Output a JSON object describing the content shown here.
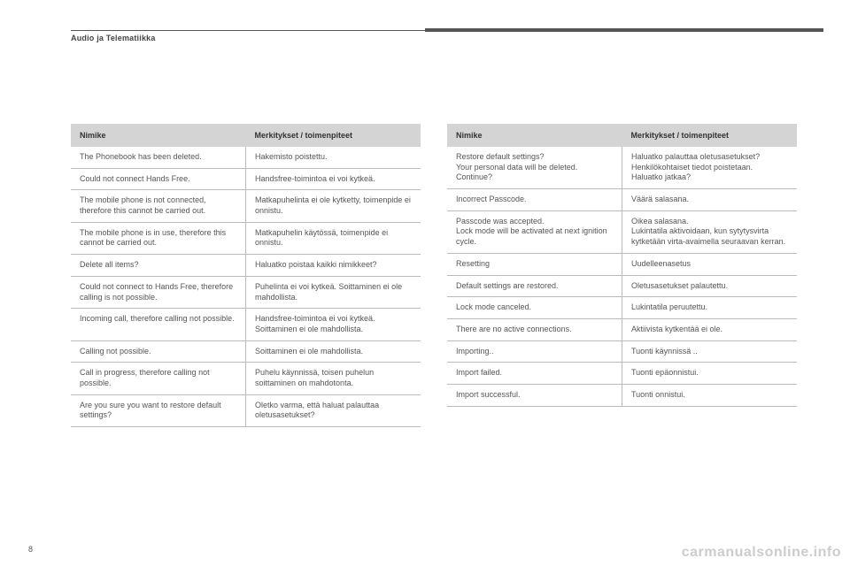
{
  "header": {
    "section_title": "Audio ja Telematiikka",
    "page_number": "8"
  },
  "watermark": "carmanualsonline.info",
  "tables": {
    "columns": [
      "Nimike",
      "Merkitykset / toimenpiteet"
    ],
    "left_rows": [
      [
        "The Phonebook has been deleted.",
        "Hakemisto poistettu."
      ],
      [
        "Could not connect Hands Free.",
        "Handsfree-toimintoa ei voi kytkeä."
      ],
      [
        "The mobile phone is not connected, therefore this cannot be carried out.",
        "Matkapuhelinta ei ole kytketty, toimenpide ei onnistu."
      ],
      [
        "The mobile phone is in use, therefore this cannot be carried out.",
        "Matkapuhelin käytössä, toimenpide ei onnistu."
      ],
      [
        "Delete all items?",
        "Haluatko poistaa kaikki nimikkeet?"
      ],
      [
        "Could not connect to Hands Free, therefore calling is not possible.",
        "Puhelinta ei voi kytkeä. Soittaminen ei ole mahdollista."
      ],
      [
        "Incoming call, therefore calling not possible.",
        "Handsfree-toimintoa ei voi kytkeä. Soittaminen ei ole mahdollista."
      ],
      [
        "Calling not possible.",
        "Soittaminen ei ole mahdollista."
      ],
      [
        "Call in progress, therefore calling not possible.",
        "Puhelu käynnissä, toisen puhelun soittaminen on mahdotonta."
      ],
      [
        "Are you sure you want to restore default settings?",
        "Oletko varma, että haluat palauttaa oletusasetukset?"
      ]
    ],
    "right_rows": [
      [
        "Restore default settings?\nYour personal data will be deleted.\nContinue?",
        "Haluatko palauttaa oletusasetukset?\nHenkilökohtaiset tiedot poistetaan.\nHaluatko jatkaa?"
      ],
      [
        "Incorrect Passcode.",
        "Väärä salasana."
      ],
      [
        "Passcode was accepted.\nLock mode will be activated at next ignition cycle.",
        "Oikea salasana.\nLukintatila aktivoidaan, kun sytytysvirta kytketään virta-avaimella seuraavan kerran."
      ],
      [
        "Resetting",
        "Uudelleenasetus"
      ],
      [
        "Default settings are restored.",
        "Oletusasetukset palautettu."
      ],
      [
        "Lock mode canceled.",
        "Lukintatila peruutettu."
      ],
      [
        "There are no active connections.",
        "Aktiivista kytkentää ei ole."
      ],
      [
        "Importing..",
        "Tuonti käynnissä .."
      ],
      [
        "Import failed.",
        "Tuonti epäonnistui."
      ],
      [
        "Import successful.",
        "Tuonti onnistui."
      ]
    ]
  },
  "style": {
    "page_bg": "#ffffff",
    "text_color": "#555555",
    "header_bg": "#d4d4d4",
    "border_color": "#bbbbbb",
    "rule_color": "#555555",
    "watermark_color": "#cccccc",
    "body_font_size_pt": 9,
    "header_font_size_pt": 9
  }
}
